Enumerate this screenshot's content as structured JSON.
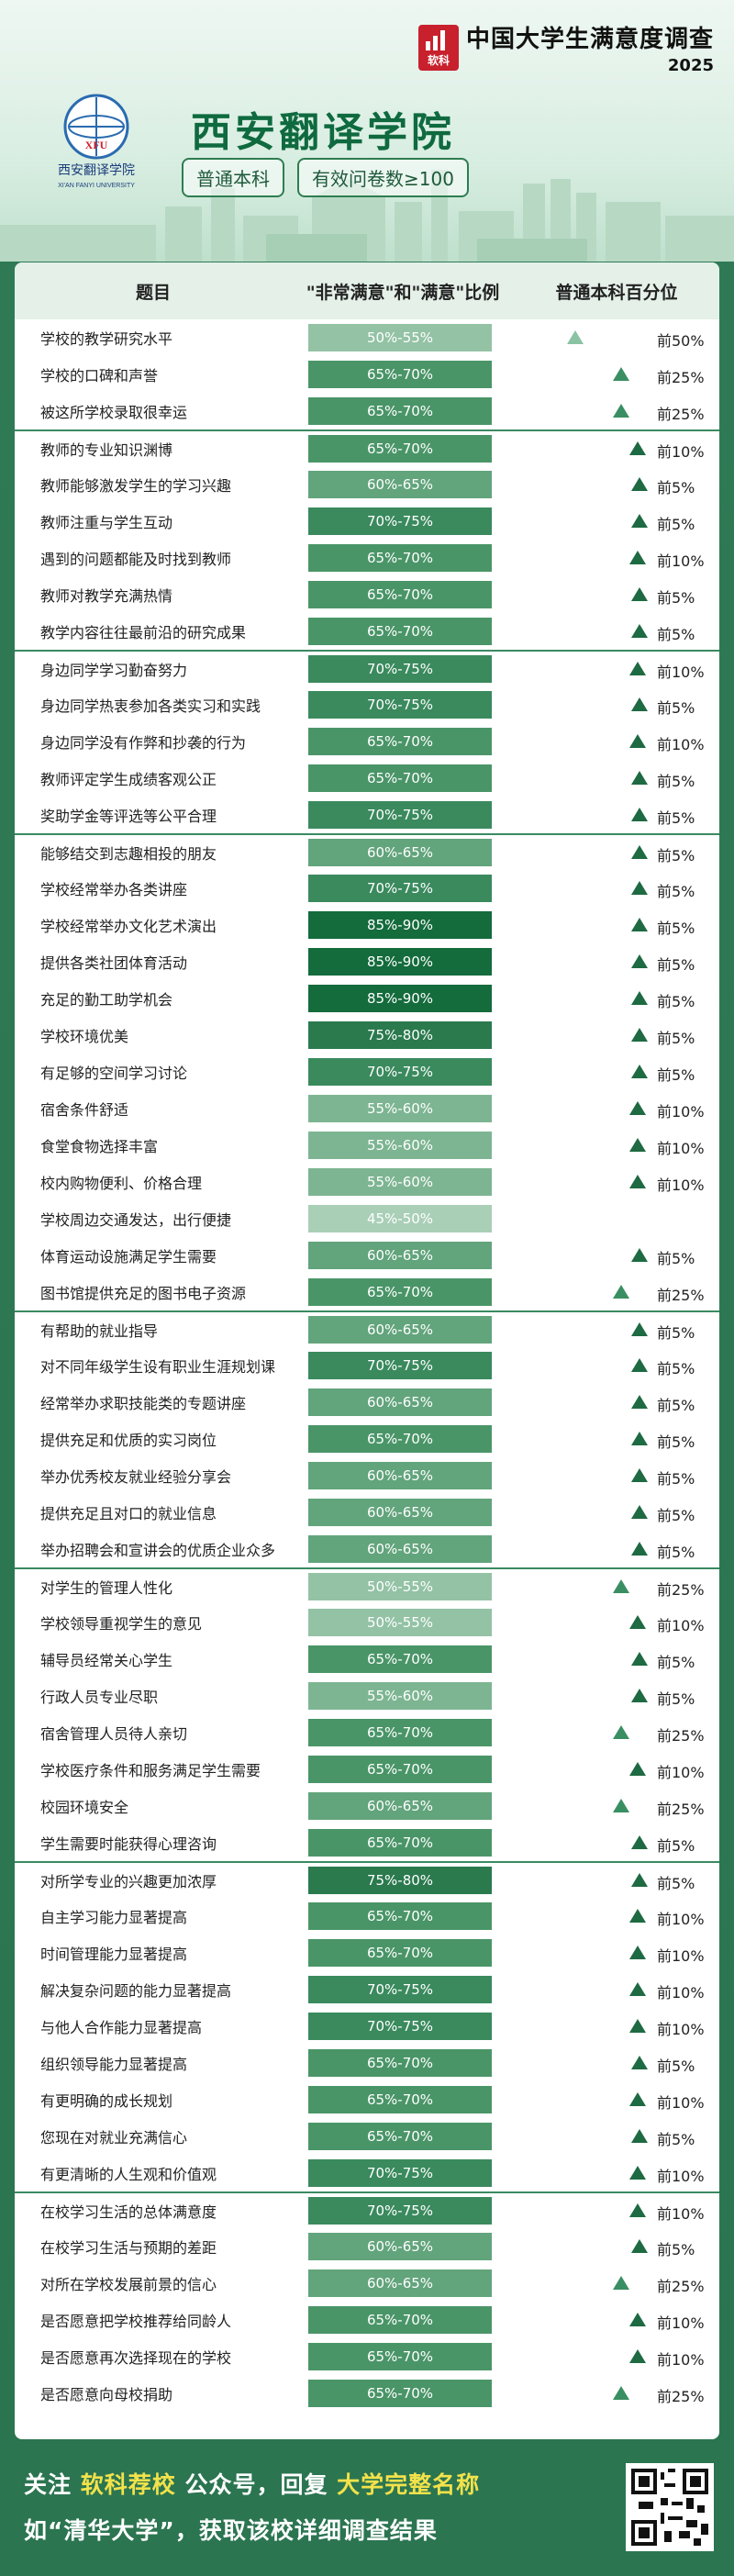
{
  "header": {
    "brand_title": "中国大学生满意度调查",
    "brand_logo_text": "软科",
    "brand_year": "2025",
    "school_name": "西安翻译学院",
    "logo_abbr": "XFU",
    "logo_cn": "西安翻译学院",
    "logo_en": "XI'AN FANYI UNIVERSITY",
    "tag_level": "普通本科",
    "tag_sample": "有效问卷数≥100"
  },
  "table": {
    "col_question": "题目",
    "col_ratio": "\"非常满意\"和\"满意\"比例",
    "col_rank": "普通本科百分位",
    "rows": [
      {
        "q": "学校的教学研究水平",
        "r": "50%-55%",
        "p": "前50%",
        "group": true
      },
      {
        "q": "学校的口碑和声誉",
        "r": "65%-70%",
        "p": "前25%"
      },
      {
        "q": "被这所学校录取很幸运",
        "r": "65%-70%",
        "p": "前25%"
      },
      {
        "q": "教师的专业知识渊博",
        "r": "65%-70%",
        "p": "前10%",
        "group": true
      },
      {
        "q": "教师能够激发学生的学习兴趣",
        "r": "60%-65%",
        "p": "前5%"
      },
      {
        "q": "教师注重与学生互动",
        "r": "70%-75%",
        "p": "前5%"
      },
      {
        "q": "遇到的问题都能及时找到教师",
        "r": "65%-70%",
        "p": "前10%"
      },
      {
        "q": "教师对教学充满热情",
        "r": "65%-70%",
        "p": "前5%"
      },
      {
        "q": "教学内容往往最前沿的研究成果",
        "r": "65%-70%",
        "p": "前5%"
      },
      {
        "q": "身边同学学习勤奋努力",
        "r": "70%-75%",
        "p": "前10%",
        "group": true
      },
      {
        "q": "身边同学热衷参加各类实习和实践",
        "r": "70%-75%",
        "p": "前5%"
      },
      {
        "q": "身边同学没有作弊和抄袭的行为",
        "r": "65%-70%",
        "p": "前10%"
      },
      {
        "q": "教师评定学生成绩客观公正",
        "r": "65%-70%",
        "p": "前5%"
      },
      {
        "q": "奖助学金等评选等公平合理",
        "r": "70%-75%",
        "p": "前5%"
      },
      {
        "q": "能够结交到志趣相投的朋友",
        "r": "60%-65%",
        "p": "前5%",
        "group": true
      },
      {
        "q": "学校经常举办各类讲座",
        "r": "70%-75%",
        "p": "前5%"
      },
      {
        "q": "学校经常举办文化艺术演出",
        "r": "85%-90%",
        "p": "前5%"
      },
      {
        "q": "提供各类社团体育活动",
        "r": "85%-90%",
        "p": "前5%"
      },
      {
        "q": "充足的勤工助学机会",
        "r": "85%-90%",
        "p": "前5%"
      },
      {
        "q": "学校环境优美",
        "r": "75%-80%",
        "p": "前5%"
      },
      {
        "q": "有足够的空间学习讨论",
        "r": "70%-75%",
        "p": "前5%"
      },
      {
        "q": "宿舍条件舒适",
        "r": "55%-60%",
        "p": "前10%"
      },
      {
        "q": "食堂食物选择丰富",
        "r": "55%-60%",
        "p": "前10%"
      },
      {
        "q": "校内购物便利、价格合理",
        "r": "55%-60%",
        "p": "前10%"
      },
      {
        "q": "学校周边交通发达，出行便捷",
        "r": "45%-50%",
        "p": ""
      },
      {
        "q": "体育运动设施满足学生需要",
        "r": "60%-65%",
        "p": "前5%"
      },
      {
        "q": "图书馆提供充足的图书电子资源",
        "r": "65%-70%",
        "p": "前25%"
      },
      {
        "q": "有帮助的就业指导",
        "r": "60%-65%",
        "p": "前5%",
        "group": true
      },
      {
        "q": "对不同年级学生设有职业生涯规划课",
        "r": "70%-75%",
        "p": "前5%"
      },
      {
        "q": "经常举办求职技能类的专题讲座",
        "r": "60%-65%",
        "p": "前5%"
      },
      {
        "q": "提供充足和优质的实习岗位",
        "r": "65%-70%",
        "p": "前5%"
      },
      {
        "q": "举办优秀校友就业经验分享会",
        "r": "60%-65%",
        "p": "前5%"
      },
      {
        "q": "提供充足且对口的就业信息",
        "r": "60%-65%",
        "p": "前5%"
      },
      {
        "q": "举办招聘会和宣讲会的优质企业众多",
        "r": "60%-65%",
        "p": "前5%"
      },
      {
        "q": "对学生的管理人性化",
        "r": "50%-55%",
        "p": "前25%",
        "group": true
      },
      {
        "q": "学校领导重视学生的意见",
        "r": "50%-55%",
        "p": "前10%"
      },
      {
        "q": "辅导员经常关心学生",
        "r": "65%-70%",
        "p": "前5%"
      },
      {
        "q": "行政人员专业尽职",
        "r": "55%-60%",
        "p": "前5%"
      },
      {
        "q": "宿舍管理人员待人亲切",
        "r": "65%-70%",
        "p": "前25%"
      },
      {
        "q": "学校医疗条件和服务满足学生需要",
        "r": "65%-70%",
        "p": "前10%"
      },
      {
        "q": "校园环境安全",
        "r": "60%-65%",
        "p": "前25%"
      },
      {
        "q": "学生需要时能获得心理咨询",
        "r": "65%-70%",
        "p": "前5%"
      },
      {
        "q": "对所学专业的兴趣更加浓厚",
        "r": "75%-80%",
        "p": "前5%",
        "group": true
      },
      {
        "q": "自主学习能力显著提高",
        "r": "65%-70%",
        "p": "前10%"
      },
      {
        "q": "时间管理能力显著提高",
        "r": "65%-70%",
        "p": "前10%"
      },
      {
        "q": "解决复杂问题的能力显著提高",
        "r": "70%-75%",
        "p": "前10%"
      },
      {
        "q": "与他人合作能力显著提高",
        "r": "70%-75%",
        "p": "前10%"
      },
      {
        "q": "组织领导能力显著提高",
        "r": "65%-70%",
        "p": "前5%"
      },
      {
        "q": "有更明确的成长规划",
        "r": "65%-70%",
        "p": "前10%"
      },
      {
        "q": "您现在对就业充满信心",
        "r": "65%-70%",
        "p": "前5%"
      },
      {
        "q": "有更清晰的人生观和价值观",
        "r": "70%-75%",
        "p": "前10%"
      },
      {
        "q": "在校学习生活的总体满意度",
        "r": "70%-75%",
        "p": "前10%",
        "group": true
      },
      {
        "q": "在校学习生活与预期的差距",
        "r": "60%-65%",
        "p": "前5%"
      },
      {
        "q": "对所在学校发展前景的信心",
        "r": "60%-65%",
        "p": "前25%"
      },
      {
        "q": "是否愿意把学校推荐给同龄人",
        "r": "65%-70%",
        "p": "前10%"
      },
      {
        "q": "是否愿意再次选择现在的学校",
        "r": "65%-70%",
        "p": "前10%"
      },
      {
        "q": "是否愿意向母校捐助",
        "r": "65%-70%",
        "p": "前25%"
      }
    ]
  },
  "footer": {
    "line1_a": "关注 ",
    "line1_b": "软科荐校",
    "line1_c": " 公众号，回复 ",
    "line1_d": "大学完整名称",
    "line2": "如“清华大学”，获取该校详细调查结果"
  },
  "colors": {
    "accent": "#2b7551",
    "header_bg": "#e4f0e8",
    "school_name": "#0f6a3f"
  }
}
